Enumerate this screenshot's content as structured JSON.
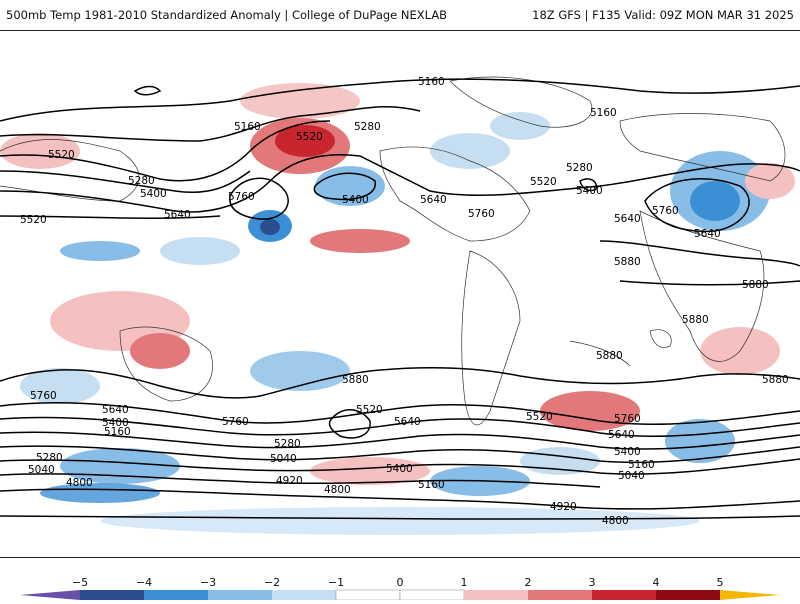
{
  "header": {
    "title_left": "500mb Temp 1981-2010 Standardized Anomaly | College of DuPage NEXLAB",
    "title_right": "18Z GFS | F135 Valid: 09Z MON MAR 31 2025"
  },
  "colorbar": {
    "ticks": [
      "−5",
      "−4",
      "−3",
      "−2",
      "−1",
      "0",
      "1",
      "2",
      "3",
      "4",
      "5"
    ],
    "colors": [
      "#6a4fa8",
      "#2a4f8f",
      "#3c8fd4",
      "#87bde6",
      "#c6def2",
      "#ffffff",
      "#ffffff",
      "#f4c0c0",
      "#e3787b",
      "#c9252f",
      "#8e0b14",
      "#f5b800"
    ]
  },
  "contour_labels": [
    "5160",
    "5520",
    "5280",
    "5160",
    "5520",
    "5280",
    "5400",
    "5760",
    "5640",
    "5520",
    "5400",
    "5640",
    "5760",
    "5280",
    "5160",
    "5400",
    "5520",
    "5640",
    "5760",
    "5640",
    "5880",
    "5880",
    "5880",
    "5880",
    "5880",
    "5760",
    "5640",
    "5400",
    "5160",
    "5280",
    "5040",
    "5760",
    "5640",
    "5520",
    "5400",
    "5280",
    "5160",
    "5040",
    "5040",
    "4920",
    "4800",
    "4920",
    "4800",
    "5160",
    "5400",
    "5640",
    "5520",
    "5760",
    "5880",
    "4800"
  ]
}
